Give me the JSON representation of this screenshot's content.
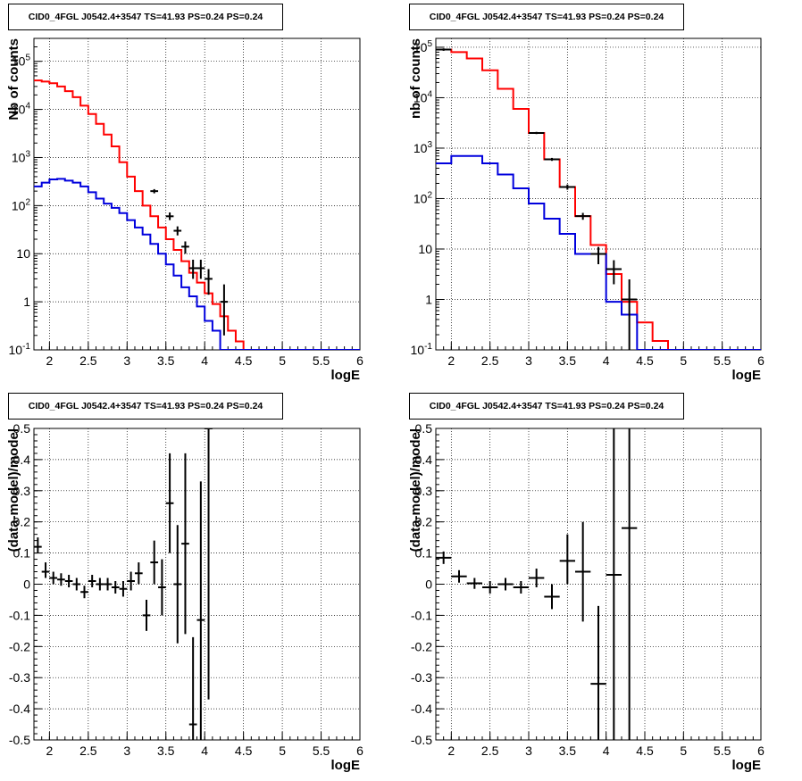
{
  "chart_data": [
    {
      "type": "line",
      "title": "CID0_4FGL J0542.4+3547 TS=41.93 PS=0.24 PS=0.24",
      "xlabel": "logE",
      "ylabel": "Nb of counts",
      "xlim": [
        1.8,
        6.0
      ],
      "ylim": [
        0.1,
        300000
      ],
      "yscale": "log",
      "grid": true,
      "x_ticks": [
        "2",
        "2.5",
        "3",
        "3.5",
        "4",
        "4.5",
        "5",
        "5.5",
        "6"
      ],
      "y_ticks": [
        "10^-1",
        "1",
        "10",
        "10^2",
        "10^3",
        "10^4",
        "10^5"
      ],
      "bin_edges": [
        1.8,
        1.9,
        2.0,
        2.1,
        2.2,
        2.3,
        2.4,
        2.5,
        2.6,
        2.7,
        2.8,
        2.9,
        3.0,
        3.1,
        3.2,
        3.3,
        3.4,
        3.5,
        3.6,
        3.7,
        3.8,
        3.9,
        4.0,
        4.1,
        4.2,
        4.3,
        4.4,
        4.5,
        4.6,
        4.7,
        4.8,
        4.9,
        5.0,
        5.1,
        5.2,
        5.3,
        5.4,
        5.5,
        5.6,
        5.7,
        5.8,
        5.9,
        6.0
      ],
      "series": [
        {
          "color": "#ff0000",
          "style": "step",
          "values": [
            40000,
            38000,
            35000,
            30000,
            24000,
            18000,
            12000,
            8000,
            5000,
            3000,
            1700,
            800,
            400,
            200,
            100,
            60,
            35,
            20,
            12,
            7,
            4,
            2.5,
            1.5,
            0.9,
            0.5,
            0.25,
            0.15,
            0.1,
            0.1,
            0.1,
            0.1,
            0.1,
            0.1,
            0.1,
            0.1,
            0.1,
            0.1,
            0.1,
            0.1,
            0.1,
            0.1,
            0.1
          ]
        },
        {
          "color": "#0000dd",
          "style": "step",
          "values": [
            250,
            300,
            350,
            360,
            330,
            300,
            250,
            190,
            140,
            110,
            90,
            70,
            50,
            35,
            25,
            16,
            10,
            6,
            3.5,
            2,
            1.3,
            0.8,
            0.4,
            0.25,
            0.1,
            0.1,
            0.1,
            0.1,
            0.1,
            0.1,
            0.1,
            0.1,
            0.1,
            0.1,
            0.1,
            0.1,
            0.1,
            0.1,
            0.1,
            0.1,
            0.1,
            0.1
          ]
        }
      ],
      "points": [
        {
          "x": 3.35,
          "y": 200,
          "xerr": 0.05,
          "ylo": 180,
          "yhi": 220
        },
        {
          "x": 3.55,
          "y": 60,
          "xerr": 0.05,
          "ylo": 50,
          "yhi": 72
        },
        {
          "x": 3.65,
          "y": 30,
          "xerr": 0.05,
          "ylo": 24,
          "yhi": 37
        },
        {
          "x": 3.75,
          "y": 14,
          "xerr": 0.05,
          "ylo": 10,
          "yhi": 18
        },
        {
          "x": 3.85,
          "y": 5,
          "xerr": 0.05,
          "ylo": 3,
          "yhi": 7.5
        },
        {
          "x": 3.95,
          "y": 5,
          "xerr": 0.05,
          "ylo": 3,
          "yhi": 7.5
        },
        {
          "x": 4.05,
          "y": 3,
          "xerr": 0.05,
          "ylo": 1.4,
          "yhi": 4.8
        },
        {
          "x": 4.25,
          "y": 1,
          "xerr": 0.05,
          "ylo": 0.2,
          "yhi": 2.3
        }
      ]
    },
    {
      "type": "line",
      "title": "CID0_4FGL J0542.4+3547 TS=41.93 PS=0.24 PS=0.24",
      "xlabel": "logE",
      "ylabel": "nb of counts",
      "xlim": [
        1.8,
        6.0
      ],
      "ylim": [
        0.1,
        150000
      ],
      "yscale": "log",
      "grid": true,
      "x_ticks": [
        "2",
        "2.5",
        "3",
        "3.5",
        "4",
        "4.5",
        "5",
        "5.5",
        "6"
      ],
      "y_ticks": [
        "10^-1",
        "1",
        "10",
        "10^2",
        "10^3",
        "10^4",
        "10^5"
      ],
      "bin_edges": [
        1.8,
        2.0,
        2.2,
        2.4,
        2.6,
        2.8,
        3.0,
        3.2,
        3.4,
        3.6,
        3.8,
        4.0,
        4.2,
        4.4,
        4.6,
        4.8,
        5.0,
        5.2,
        5.4,
        5.6,
        5.8,
        6.0
      ],
      "series": [
        {
          "color": "#ff0000",
          "style": "step",
          "values": [
            90000,
            80000,
            60000,
            35000,
            15000,
            6000,
            2000,
            600,
            170,
            45,
            12,
            3.2,
            0.9,
            0.35,
            0.15,
            0.1,
            0.1,
            0.1,
            0.1,
            0.1,
            0.1
          ]
        },
        {
          "color": "#0000dd",
          "style": "step",
          "values": [
            500,
            700,
            700,
            500,
            300,
            160,
            80,
            40,
            20,
            8,
            8,
            0.9,
            0.5,
            0.1,
            0.1,
            0.1,
            0.1,
            0.1,
            0.1,
            0.1,
            0.1
          ]
        }
      ],
      "points": [
        {
          "x": 1.9,
          "y": 90000,
          "xerr": 0.1,
          "ylo": 85000,
          "yhi": 95000
        },
        {
          "x": 3.1,
          "y": 2000,
          "xerr": 0.1,
          "ylo": 1900,
          "yhi": 2100
        },
        {
          "x": 3.3,
          "y": 600,
          "xerr": 0.1,
          "ylo": 560,
          "yhi": 640
        },
        {
          "x": 3.5,
          "y": 170,
          "xerr": 0.1,
          "ylo": 150,
          "yhi": 190
        },
        {
          "x": 3.7,
          "y": 45,
          "xerr": 0.1,
          "ylo": 38,
          "yhi": 52
        },
        {
          "x": 3.9,
          "y": 8,
          "xerr": 0.1,
          "ylo": 5,
          "yhi": 11
        },
        {
          "x": 4.1,
          "y": 4,
          "xerr": 0.1,
          "ylo": 2,
          "yhi": 6
        },
        {
          "x": 4.3,
          "y": 1,
          "xerr": 0.1,
          "ylo": 0.08,
          "yhi": 2.5
        }
      ]
    },
    {
      "type": "scatter",
      "title": "CID0_4FGL J0542.4+3547 TS=41.93 PS=0.24 PS=0.24",
      "xlabel": "logE",
      "ylabel": "(data-model)/model",
      "xlim": [
        1.8,
        6.0
      ],
      "ylim": [
        -0.5,
        0.5
      ],
      "yscale": "linear",
      "grid": true,
      "x_ticks": [
        "2",
        "2.5",
        "3",
        "3.5",
        "4",
        "4.5",
        "5",
        "5.5",
        "6"
      ],
      "y_ticks": [
        "-0.5",
        "-0.4",
        "-0.3",
        "-0.2",
        "-0.1",
        "0",
        "0.1",
        "0.2",
        "0.3",
        "0.4",
        "0.5"
      ],
      "points": [
        {
          "x": 1.85,
          "y": 0.12,
          "xerr": 0.05,
          "ylo": 0.1,
          "yhi": 0.15
        },
        {
          "x": 1.95,
          "y": 0.04,
          "xerr": 0.05,
          "ylo": 0.02,
          "yhi": 0.07
        },
        {
          "x": 2.05,
          "y": 0.02,
          "xerr": 0.05,
          "ylo": 0.0,
          "yhi": 0.04
        },
        {
          "x": 2.15,
          "y": 0.015,
          "xerr": 0.05,
          "ylo": -0.005,
          "yhi": 0.035
        },
        {
          "x": 2.25,
          "y": 0.01,
          "xerr": 0.05,
          "ylo": -0.01,
          "yhi": 0.03
        },
        {
          "x": 2.35,
          "y": 0.0,
          "xerr": 0.05,
          "ylo": -0.02,
          "yhi": 0.02
        },
        {
          "x": 2.45,
          "y": -0.025,
          "xerr": 0.05,
          "ylo": -0.045,
          "yhi": -0.005
        },
        {
          "x": 2.55,
          "y": 0.01,
          "xerr": 0.05,
          "ylo": -0.01,
          "yhi": 0.03
        },
        {
          "x": 2.65,
          "y": 0.0,
          "xerr": 0.05,
          "ylo": -0.02,
          "yhi": 0.02
        },
        {
          "x": 2.75,
          "y": 0.0,
          "xerr": 0.05,
          "ylo": -0.02,
          "yhi": 0.02
        },
        {
          "x": 2.85,
          "y": -0.01,
          "xerr": 0.05,
          "ylo": -0.03,
          "yhi": 0.01
        },
        {
          "x": 2.95,
          "y": -0.015,
          "xerr": 0.05,
          "ylo": -0.04,
          "yhi": 0.01
        },
        {
          "x": 3.05,
          "y": 0.01,
          "xerr": 0.05,
          "ylo": -0.02,
          "yhi": 0.04
        },
        {
          "x": 3.15,
          "y": 0.035,
          "xerr": 0.05,
          "ylo": 0.0,
          "yhi": 0.07
        },
        {
          "x": 3.25,
          "y": -0.1,
          "xerr": 0.05,
          "ylo": -0.15,
          "yhi": -0.05
        },
        {
          "x": 3.35,
          "y": 0.07,
          "xerr": 0.05,
          "ylo": 0.0,
          "yhi": 0.14
        },
        {
          "x": 3.45,
          "y": -0.01,
          "xerr": 0.05,
          "ylo": -0.1,
          "yhi": 0.08
        },
        {
          "x": 3.55,
          "y": 0.26,
          "xerr": 0.05,
          "ylo": 0.1,
          "yhi": 0.42
        },
        {
          "x": 3.65,
          "y": 0.0,
          "xerr": 0.05,
          "ylo": -0.19,
          "yhi": 0.19
        },
        {
          "x": 3.75,
          "y": 0.13,
          "xerr": 0.05,
          "ylo": -0.16,
          "yhi": 0.42
        },
        {
          "x": 3.85,
          "y": -0.45,
          "xerr": 0.05,
          "ylo": -0.5,
          "yhi": -0.17
        },
        {
          "x": 3.95,
          "y": -0.115,
          "xerr": 0.05,
          "ylo": -0.5,
          "yhi": 0.33
        },
        {
          "x": 4.05,
          "y": 0.5,
          "xerr": 0.05,
          "ylo": -0.37,
          "yhi": 0.5
        }
      ]
    },
    {
      "type": "scatter",
      "title": "CID0_4FGL J0542.4+3547 TS=41.93 PS=0.24 PS=0.24",
      "xlabel": "logE",
      "ylabel": "(data-model)/model",
      "xlim": [
        1.8,
        6.0
      ],
      "ylim": [
        -0.5,
        0.5
      ],
      "yscale": "linear",
      "grid": true,
      "x_ticks": [
        "2",
        "2.5",
        "3",
        "3.5",
        "4",
        "4.5",
        "5",
        "5.5",
        "6"
      ],
      "y_ticks": [
        "-0.5",
        "-0.4",
        "-0.3",
        "-0.2",
        "-0.1",
        "0",
        "0.1",
        "0.2",
        "0.3",
        "0.4",
        "0.5"
      ],
      "points": [
        {
          "x": 1.9,
          "y": 0.085,
          "xerr": 0.1,
          "ylo": 0.065,
          "yhi": 0.105
        },
        {
          "x": 2.1,
          "y": 0.025,
          "xerr": 0.1,
          "ylo": 0.005,
          "yhi": 0.045
        },
        {
          "x": 2.3,
          "y": 0.003,
          "xerr": 0.1,
          "ylo": -0.015,
          "yhi": 0.02
        },
        {
          "x": 2.5,
          "y": -0.01,
          "xerr": 0.1,
          "ylo": -0.03,
          "yhi": 0.01
        },
        {
          "x": 2.7,
          "y": 0.0,
          "xerr": 0.1,
          "ylo": -0.02,
          "yhi": 0.02
        },
        {
          "x": 2.9,
          "y": -0.01,
          "xerr": 0.1,
          "ylo": -0.03,
          "yhi": 0.01
        },
        {
          "x": 3.1,
          "y": 0.02,
          "xerr": 0.1,
          "ylo": -0.01,
          "yhi": 0.05
        },
        {
          "x": 3.3,
          "y": -0.04,
          "xerr": 0.1,
          "ylo": -0.08,
          "yhi": 0.0
        },
        {
          "x": 3.5,
          "y": 0.075,
          "xerr": 0.1,
          "ylo": 0.0,
          "yhi": 0.16
        },
        {
          "x": 3.7,
          "y": 0.04,
          "xerr": 0.1,
          "ylo": -0.12,
          "yhi": 0.2
        },
        {
          "x": 3.9,
          "y": -0.32,
          "xerr": 0.1,
          "ylo": -0.5,
          "yhi": -0.07
        },
        {
          "x": 4.1,
          "y": 0.03,
          "xerr": 0.1,
          "ylo": -0.5,
          "yhi": 0.5
        },
        {
          "x": 4.3,
          "y": 0.18,
          "xerr": 0.1,
          "ylo": -0.5,
          "yhi": 0.5
        }
      ]
    }
  ]
}
